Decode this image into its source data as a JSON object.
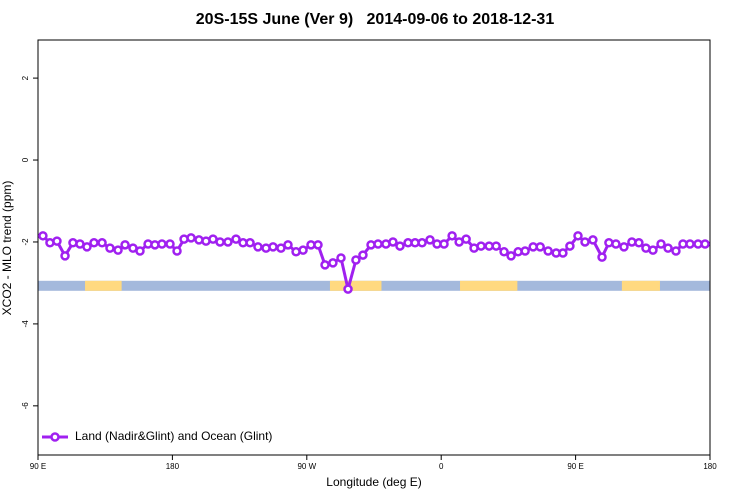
{
  "chart_data": {
    "type": "line",
    "title": "20S-15S June (Ver 9)   2014-09-06 to 2018-12-31",
    "xlabel": "Longitude (deg E)",
    "ylabel": "XCO2 - MLO trend (ppm)",
    "xlim": [
      90,
      540
    ],
    "ylim": [
      -7.2,
      2.93
    ],
    "xticks": [
      {
        "value": 90,
        "label": "90 E"
      },
      {
        "value": 180,
        "label": "180"
      },
      {
        "value": 270,
        "label": "90 W"
      },
      {
        "value": 360,
        "label": "0"
      },
      {
        "value": 450,
        "label": "90 E"
      },
      {
        "value": 540,
        "label": "180"
      }
    ],
    "yticks": [
      2,
      0,
      -2,
      -4,
      -6
    ],
    "legend": "bottom-left",
    "surface_band": {
      "y": -3.07,
      "ocean_color": "#a4b9dc",
      "land_color": "#ffd980",
      "land_ranges": [
        [
          121.5,
          146
        ],
        [
          285.5,
          320
        ],
        [
          372.6,
          411
        ],
        [
          481,
          506.5
        ]
      ]
    },
    "series": [
      {
        "name": "Land (Nadir&Glint) and Ocean (Glint)",
        "color": "#a020f0",
        "x": [
          93.3,
          98.0,
          102.7,
          108.1,
          113.4,
          118.1,
          122.8,
          127.5,
          132.9,
          138.2,
          143.6,
          148.3,
          153.6,
          158.3,
          163.7,
          168.3,
          173.0,
          178.4,
          183.1,
          187.8,
          192.5,
          197.8,
          202.5,
          207.2,
          211.9,
          217.2,
          222.6,
          227.3,
          232.0,
          237.3,
          242.7,
          247.4,
          252.7,
          257.4,
          262.8,
          267.5,
          272.8,
          277.5,
          282.2,
          287.5,
          292.9,
          297.6,
          302.9,
          307.6,
          313.0,
          317.7,
          323.0,
          327.7,
          332.4,
          337.8,
          342.5,
          347.2,
          352.5,
          357.2,
          361.9,
          367.3,
          372.0,
          376.7,
          382.0,
          386.7,
          392.1,
          396.8,
          402.1,
          406.8,
          411.5,
          416.2,
          421.6,
          426.3,
          431.6,
          437.0,
          441.5,
          446.2,
          451.6,
          456.3,
          461.6,
          467.7,
          472.3,
          477.0,
          482.4,
          487.7,
          492.4,
          497.1,
          501.8,
          507.2,
          511.9,
          517.2,
          521.9,
          526.6,
          532.0,
          536.7
        ],
        "values": [
          -1.85,
          -2.02,
          -1.98,
          -2.34,
          -2.02,
          -2.05,
          -2.12,
          -2.02,
          -2.02,
          -2.15,
          -2.2,
          -2.07,
          -2.15,
          -2.22,
          -2.05,
          -2.07,
          -2.05,
          -2.05,
          -2.22,
          -1.93,
          -1.9,
          -1.95,
          -1.98,
          -1.93,
          -2.0,
          -2.0,
          -1.93,
          -2.02,
          -2.02,
          -2.12,
          -2.15,
          -2.12,
          -2.15,
          -2.07,
          -2.24,
          -2.2,
          -2.07,
          -2.07,
          -2.56,
          -2.51,
          -2.39,
          -3.15,
          -2.44,
          -2.32,
          -2.07,
          -2.05,
          -2.05,
          -2.0,
          -2.1,
          -2.02,
          -2.02,
          -2.02,
          -1.95,
          -2.05,
          -2.05,
          -1.85,
          -2.0,
          -1.93,
          -2.15,
          -2.1,
          -2.1,
          -2.1,
          -2.24,
          -2.34,
          -2.24,
          -2.22,
          -2.12,
          -2.12,
          -2.22,
          -2.27,
          -2.27,
          -2.1,
          -1.85,
          -2.0,
          -1.95,
          -2.37,
          -2.02,
          -2.05,
          -2.12,
          -2.0,
          -2.02,
          -2.15,
          -2.2,
          -2.05,
          -2.15,
          -2.22,
          -2.05,
          -2.05,
          -2.05,
          -2.05
        ]
      }
    ]
  }
}
